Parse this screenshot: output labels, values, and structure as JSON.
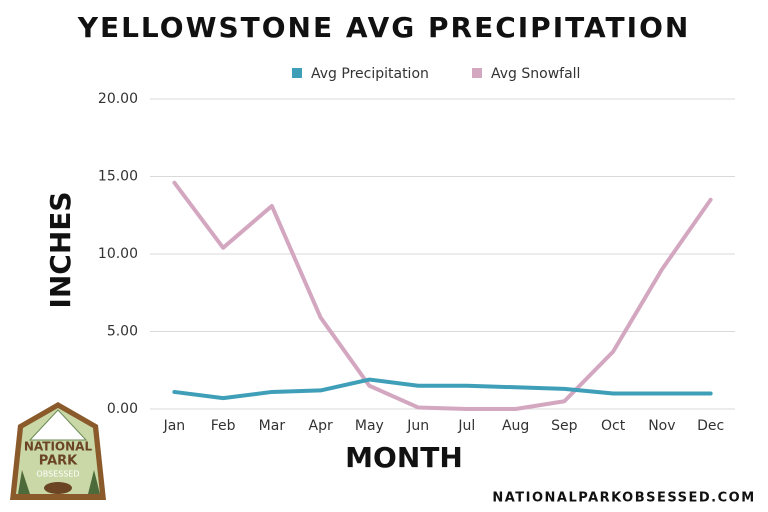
{
  "chart_data": {
    "type": "line",
    "title": "YELLOWSTONE AVG PRECIPITATION",
    "x_label": "MONTH",
    "y_label": "INCHES",
    "categories": [
      "Jan",
      "Feb",
      "Mar",
      "Apr",
      "May",
      "Jun",
      "Jul",
      "Aug",
      "Sep",
      "Oct",
      "Nov",
      "Dec"
    ],
    "series": [
      {
        "name": "Avg Precipitation",
        "color": "#3f9fb8",
        "values": [
          1.1,
          0.7,
          1.1,
          1.2,
          1.9,
          1.5,
          1.5,
          1.4,
          1.3,
          1.0,
          1.0,
          1.0
        ]
      },
      {
        "name": "Avg Snowfall",
        "color": "#d4a7c0",
        "values": [
          14.6,
          10.4,
          13.1,
          5.9,
          1.5,
          0.1,
          0,
          0,
          0.5,
          3.7,
          9.0,
          13.5
        ]
      }
    ],
    "ylim": [
      0,
      20
    ],
    "yticks": [
      {
        "value": 0,
        "label": "0.00"
      },
      {
        "value": 5,
        "label": "5.00"
      },
      {
        "value": 10,
        "label": "10.00"
      },
      {
        "value": 15,
        "label": "15.00"
      },
      {
        "value": 20,
        "label": "20.00"
      }
    ],
    "grid": true,
    "legend": "top"
  },
  "logo": {
    "line1": "NATIONAL",
    "line2": "PARK",
    "line3": "OBSESSED"
  },
  "website": "NATIONALPARKOBSESSED.COM"
}
